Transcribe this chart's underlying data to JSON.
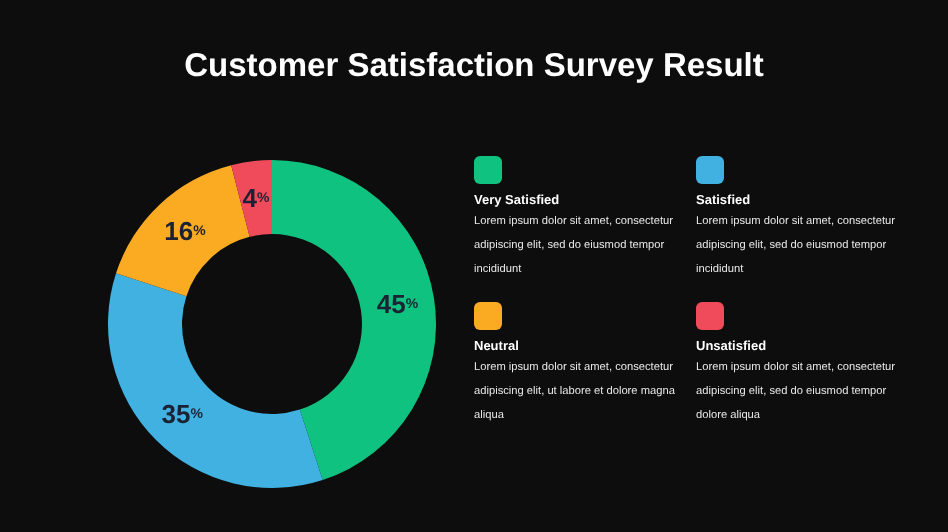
{
  "chart_data": {
    "type": "donut",
    "title": "Customer Satisfaction Survey Result",
    "categories": [
      "Very Satisfied",
      "Satisfied",
      "Neutral",
      "Unsatisfied"
    ],
    "values": [
      45,
      35,
      16,
      4
    ],
    "colors": [
      "#10c27f",
      "#41b1e1",
      "#fbab22",
      "#f04b5a"
    ],
    "value_labels": [
      "45%",
      "35%",
      "16%",
      "4%"
    ],
    "legend": "right",
    "annotations": [
      "Lorem ipsum dolor sit amet, consectetur adipiscing elit, sed do eiusmod tempor incididunt",
      "Lorem ipsum dolor sit amet, consectetur adipiscing elit, sed do eiusmod tempor incididunt",
      "Lorem ipsum dolor sit amet, consectetur adipiscing elit, ut labore et dolore magna aliqua",
      "Lorem ipsum dolor sit amet, consectetur adipiscing elit, sed do eiusmod tempor dolore aliqua"
    ]
  }
}
